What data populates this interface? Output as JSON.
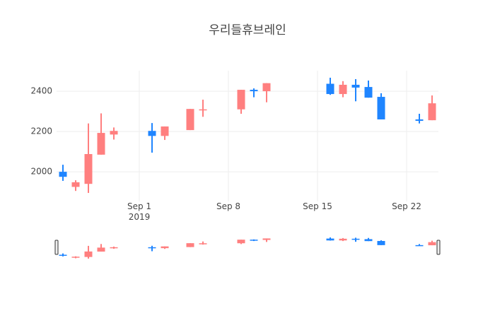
{
  "chart_data": {
    "type": "candlestick",
    "title": "우리들휴브레인",
    "x": [
      "2019-08-26",
      "2019-08-27",
      "2019-08-28",
      "2019-08-29",
      "2019-08-30",
      "2019-09-02",
      "2019-09-03",
      "2019-09-05",
      "2019-09-06",
      "2019-09-09",
      "2019-09-10",
      "2019-09-11",
      "2019-09-16",
      "2019-09-17",
      "2019-09-18",
      "2019-09-19",
      "2019-09-20",
      "2019-09-23",
      "2019-09-24"
    ],
    "open": [
      2000,
      1925,
      1940,
      2085,
      2185,
      2203,
      2178,
      2207,
      2305,
      2310,
      2407,
      2400,
      2437,
      2386,
      2432,
      2421,
      2372,
      2260,
      2256
    ],
    "high": [
      2035,
      1958,
      2240,
      2290,
      2220,
      2242,
      2225,
      2312,
      2358,
      2407,
      2414,
      2440,
      2467,
      2450,
      2460,
      2453,
      2390,
      2288,
      2379
    ],
    "low": [
      1955,
      1905,
      1895,
      2085,
      2160,
      2095,
      2158,
      2207,
      2273,
      2288,
      2370,
      2345,
      2382,
      2370,
      2350,
      2368,
      2260,
      2240,
      2256
    ],
    "close": [
      1975,
      1948,
      2088,
      2193,
      2203,
      2178,
      2225,
      2312,
      2310,
      2407,
      2400,
      2440,
      2386,
      2432,
      2418,
      2368,
      2260,
      2253,
      2340
    ],
    "increasing_color": "#ff7f7f",
    "decreasing_color": "#1f85ff",
    "xlim": [
      "2019-08-25T12:00",
      "2019-09-24T12:00"
    ],
    "xticks": [
      {
        "value": "2019-09-01",
        "label": "Sep 1\n2019"
      },
      {
        "value": "2019-09-08",
        "label": "Sep 8"
      },
      {
        "value": "2019-09-15",
        "label": "Sep 15"
      },
      {
        "value": "2019-09-22",
        "label": "Sep 22"
      }
    ],
    "ylim": [
      1853,
      2502
    ],
    "yticks": [
      2000,
      2200,
      2400
    ],
    "grid": true,
    "rangeslider": true
  }
}
